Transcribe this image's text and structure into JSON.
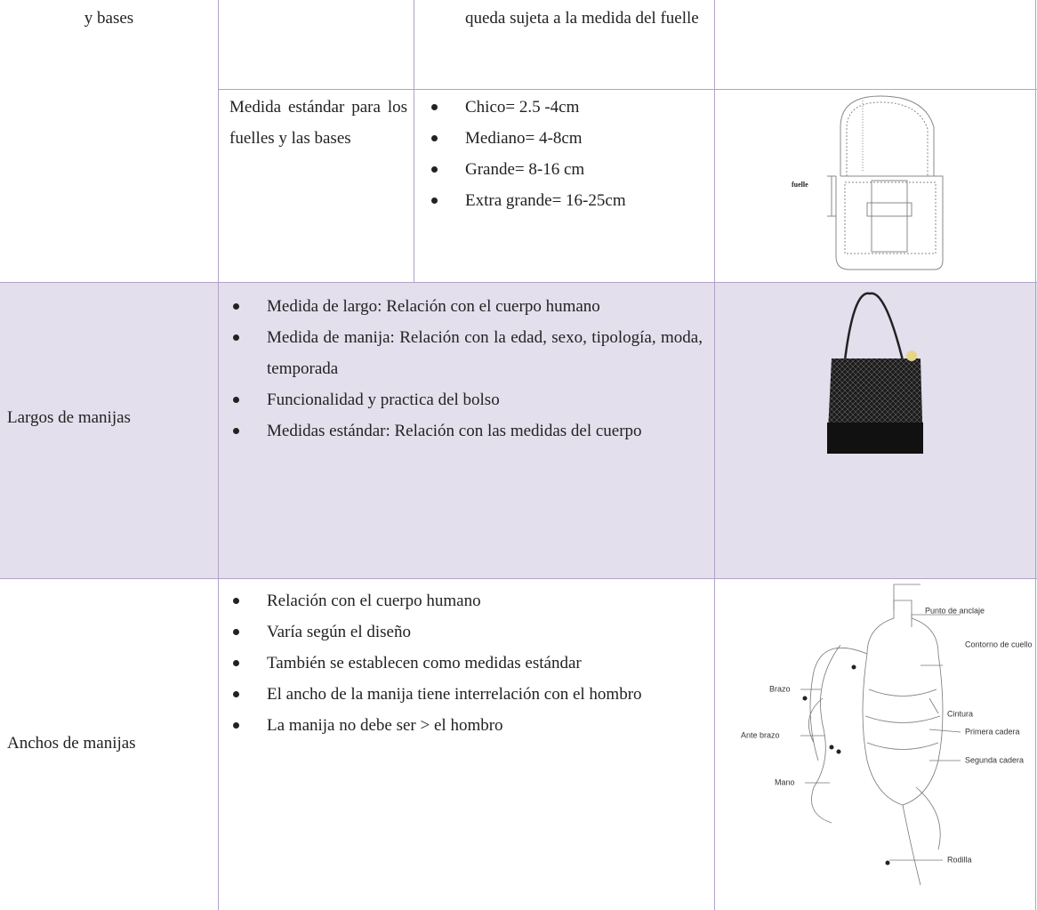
{
  "section_1": {
    "label": "y bases",
    "continuation": "queda sujeta a la medida del fuelle",
    "sub_label": "Medida estándar para los fuelles y las bases",
    "bullets": [
      "Chico= 2.5 -4cm",
      "Mediano= 4-8cm",
      "Grande= 8-16 cm",
      "Extra grande= 16-25cm"
    ],
    "figure_label": "fuelle"
  },
  "section_2": {
    "label": "Largos de manijas",
    "bullets": [
      "Medida de largo: Relación con el cuerpo humano",
      "Medida de manija: Relación con la edad, sexo, tipología, moda, temporada",
      "Funcionalidad y practica del bolso",
      "Medidas estándar: Relación con las medidas del cuerpo"
    ]
  },
  "section_3": {
    "label": "Anchos de manijas",
    "bullets": [
      "Relación con el cuerpo humano",
      "Varía según el diseño",
      "También se establecen como medidas estándar",
      "El ancho de la manija tiene interrelación con el hombro",
      "La manija no debe ser > el hombro"
    ],
    "figure_labels": [
      "Punto de anclaje",
      "Contorno de cuello",
      "Brazo",
      "Cintura",
      "Primera cadera",
      "Ante brazo",
      "Segunda cadera",
      "Mano",
      "Rodilla"
    ]
  }
}
